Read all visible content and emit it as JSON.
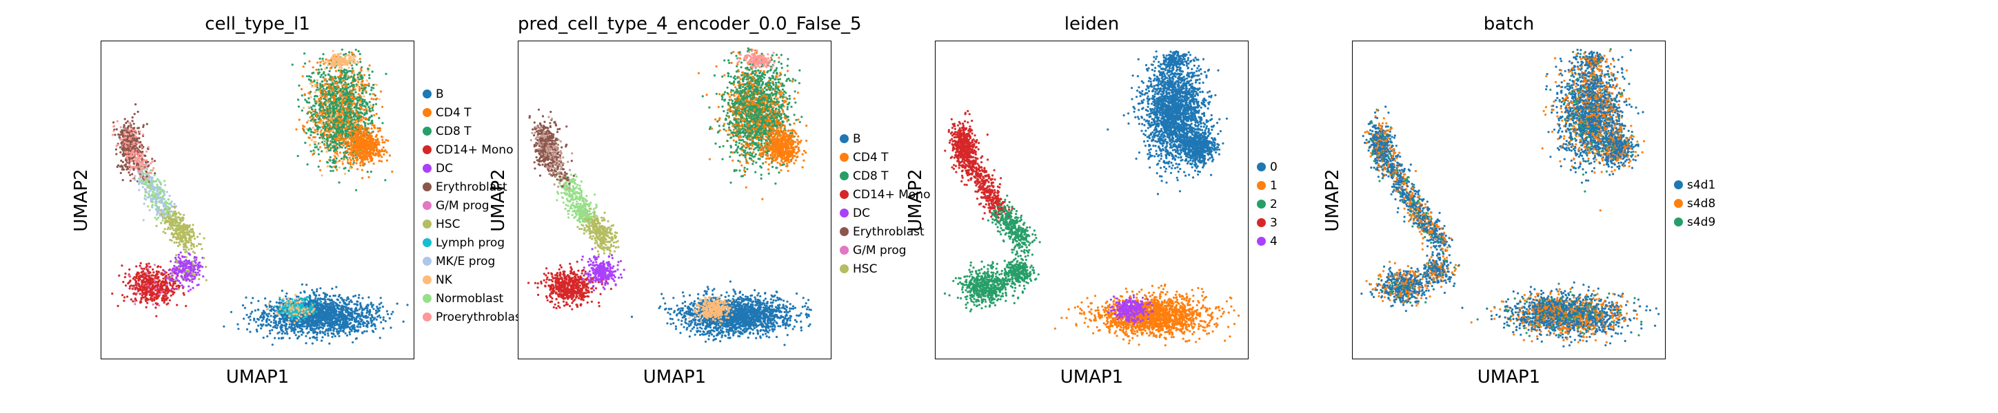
{
  "chart_data": [
    {
      "type": "scatter",
      "title": "cell_type_l1",
      "xlabel": "UMAP1",
      "ylabel": "UMAP2",
      "legend_position": "right",
      "legend": [
        {
          "label": "B",
          "color": "#1f77b4"
        },
        {
          "label": "CD4 T",
          "color": "#ff7f0e"
        },
        {
          "label": "CD8 T",
          "color": "#279e68"
        },
        {
          "label": "CD14+ Mono",
          "color": "#d62728"
        },
        {
          "label": "DC",
          "color": "#aa40fc"
        },
        {
          "label": "Erythroblast",
          "color": "#8c564b"
        },
        {
          "label": "G/M prog",
          "color": "#e377c2"
        },
        {
          "label": "HSC",
          "color": "#b5bd61"
        },
        {
          "label": "Lymph prog",
          "color": "#17becf"
        },
        {
          "label": "MK/E prog",
          "color": "#aec7e8"
        },
        {
          "label": "NK",
          "color": "#ffbb78"
        },
        {
          "label": "Normoblast",
          "color": "#98df8a"
        },
        {
          "label": "Proerythroblast",
          "color": "#ff9896"
        }
      ]
    },
    {
      "type": "scatter",
      "title": "pred_cell_type_4_encoder_0.0_False_5",
      "xlabel": "UMAP1",
      "ylabel": "UMAP2",
      "legend_position": "right",
      "legend": [
        {
          "label": "B",
          "color": "#1f77b4"
        },
        {
          "label": "CD4 T",
          "color": "#ff7f0e"
        },
        {
          "label": "CD8 T",
          "color": "#279e68"
        },
        {
          "label": "CD14+ Mono",
          "color": "#d62728"
        },
        {
          "label": "DC",
          "color": "#aa40fc"
        },
        {
          "label": "Erythroblast",
          "color": "#8c564b"
        },
        {
          "label": "G/M prog",
          "color": "#e377c2"
        },
        {
          "label": "HSC",
          "color": "#b5bd61"
        }
      ]
    },
    {
      "type": "scatter",
      "title": "leiden",
      "xlabel": "UMAP1",
      "ylabel": "UMAP2",
      "legend_position": "right",
      "legend": [
        {
          "label": "0",
          "color": "#1f77b4"
        },
        {
          "label": "1",
          "color": "#ff7f0e"
        },
        {
          "label": "2",
          "color": "#279e68"
        },
        {
          "label": "3",
          "color": "#d62728"
        },
        {
          "label": "4",
          "color": "#aa40fc"
        }
      ]
    },
    {
      "type": "scatter",
      "title": "batch",
      "xlabel": "UMAP1",
      "ylabel": "UMAP2",
      "legend_position": "right",
      "legend": [
        {
          "label": "s4d1",
          "color": "#1f77b4"
        },
        {
          "label": "s4d8",
          "color": "#ff7f0e"
        },
        {
          "label": "s4d9",
          "color": "#279e68"
        }
      ]
    }
  ]
}
